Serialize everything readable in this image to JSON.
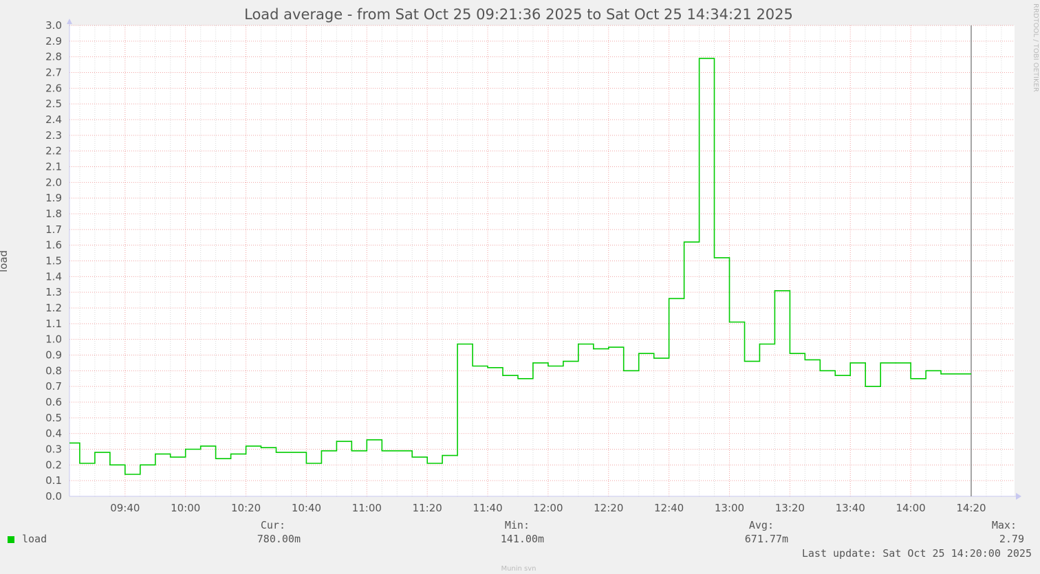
{
  "chart_data": {
    "type": "line",
    "step": true,
    "title": "Load average - from Sat Oct 25 09:21:36 2025 to Sat Oct 25 14:34:21 2025",
    "xlabel": "",
    "ylabel": "load",
    "xlim": [
      "09:21:36",
      "14:34:21"
    ],
    "ylim": [
      0,
      3.0
    ],
    "y_ticks": [
      "0.0",
      "0.1",
      "0.2",
      "0.3",
      "0.4",
      "0.5",
      "0.6",
      "0.7",
      "0.8",
      "0.9",
      "1.0",
      "1.1",
      "1.2",
      "1.3",
      "1.4",
      "1.5",
      "1.6",
      "1.7",
      "1.8",
      "1.9",
      "2.0",
      "2.1",
      "2.2",
      "2.3",
      "2.4",
      "2.5",
      "2.6",
      "2.7",
      "2.8",
      "2.9",
      "3.0"
    ],
    "x_ticks": [
      "09:40",
      "10:00",
      "10:20",
      "10:40",
      "11:00",
      "11:20",
      "11:40",
      "12:00",
      "12:20",
      "12:40",
      "13:00",
      "13:20",
      "13:40",
      "14:00",
      "14:20"
    ],
    "grid": true,
    "now_marker": "14:20",
    "series": [
      {
        "name": "load",
        "color": "#00cc00",
        "x": [
          "09:21:36",
          "09:25",
          "09:30",
          "09:35",
          "09:40",
          "09:45",
          "09:50",
          "09:55",
          "10:00",
          "10:05",
          "10:10",
          "10:15",
          "10:20",
          "10:25",
          "10:30",
          "10:35",
          "10:40",
          "10:45",
          "10:50",
          "10:55",
          "11:00",
          "11:05",
          "11:10",
          "11:15",
          "11:20",
          "11:25",
          "11:30",
          "11:35",
          "11:40",
          "11:45",
          "11:50",
          "11:55",
          "12:00",
          "12:05",
          "12:10",
          "12:15",
          "12:20",
          "12:25",
          "12:30",
          "12:35",
          "12:40",
          "12:45",
          "12:50",
          "12:55",
          "13:00",
          "13:05",
          "13:10",
          "13:15",
          "13:20",
          "13:25",
          "13:30",
          "13:35",
          "13:40",
          "13:45",
          "13:50",
          "13:55",
          "14:00",
          "14:05",
          "14:10",
          "14:15"
        ],
        "values": [
          0.34,
          0.21,
          0.28,
          0.2,
          0.14,
          0.2,
          0.27,
          0.25,
          0.3,
          0.32,
          0.24,
          0.27,
          0.32,
          0.31,
          0.28,
          0.28,
          0.21,
          0.29,
          0.35,
          0.29,
          0.36,
          0.29,
          0.29,
          0.25,
          0.21,
          0.26,
          0.97,
          0.83,
          0.82,
          0.77,
          0.75,
          0.85,
          0.83,
          0.86,
          0.97,
          0.94,
          0.95,
          0.8,
          0.91,
          0.88,
          1.26,
          1.62,
          2.79,
          1.52,
          1.11,
          0.86,
          0.97,
          1.31,
          0.91,
          0.87,
          0.8,
          0.77,
          0.85,
          0.7,
          0.85,
          0.85,
          0.75,
          0.8,
          0.78,
          0.78
        ],
        "end": "14:20"
      }
    ],
    "legend": {
      "placement": "bottom",
      "name": "load",
      "cur_label": "Cur:",
      "cur": "780.00m",
      "min_label": "Min:",
      "min": "141.00m",
      "avg_label": "Avg:",
      "avg": "671.77m",
      "max_label": "Max:",
      "max": "2.79"
    },
    "last_update": "Last update: Sat Oct 25 14:20:00 2025",
    "footer": "Munin svn",
    "watermark": "RRDTOOL / TOBI OETIKER"
  }
}
